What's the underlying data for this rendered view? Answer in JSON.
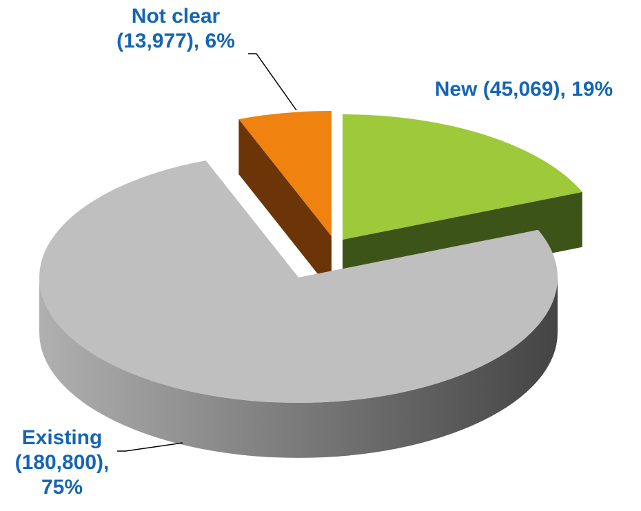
{
  "chart_data": {
    "type": "pie",
    "categories": [
      "New",
      "Existing",
      "Not clear"
    ],
    "values": [
      45069,
      180800,
      13977
    ],
    "value_labels": [
      "New (45,069), 19%",
      "Existing (180,800), 75%",
      "Not clear (13,977), 6%"
    ],
    "colors": [
      "#9dc93b",
      "#bfbfbf",
      "#f0820f"
    ]
  }
}
